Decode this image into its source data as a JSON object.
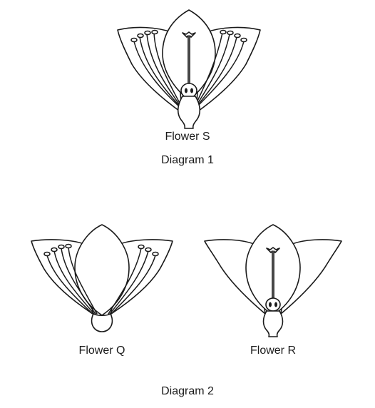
{
  "flower_s": {
    "caption": "Flower S"
  },
  "diagram_1": {
    "caption": "Diagram 1"
  },
  "flower_q": {
    "caption": "Flower Q"
  },
  "flower_r": {
    "caption": "Flower R"
  },
  "diagram_2": {
    "caption": "Diagram 2"
  }
}
